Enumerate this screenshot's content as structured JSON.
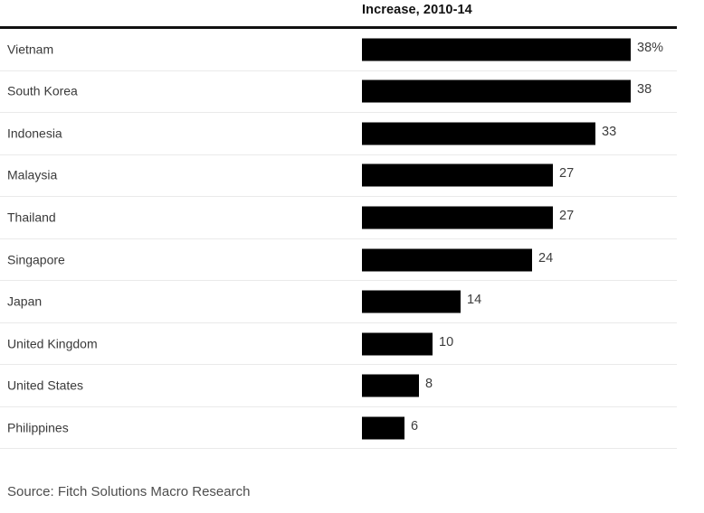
{
  "chart_data": {
    "type": "bar",
    "orientation": "horizontal",
    "title": "Increase, 2010-14",
    "categories": [
      "Vietnam",
      "South Korea",
      "Indonesia",
      "Malaysia",
      "Thailand",
      "Singapore",
      "Japan",
      "United Kingdom",
      "United States",
      "Philippines"
    ],
    "values": [
      38,
      38,
      33,
      27,
      27,
      24,
      14,
      10,
      8,
      6
    ],
    "value_labels": [
      "38%",
      "38",
      "33",
      "27",
      "27",
      "24",
      "14",
      "10",
      "8",
      "6"
    ],
    "unit": "%",
    "xlim": [
      0,
      38
    ],
    "grid": false,
    "legend": false,
    "bar_color": "#000000"
  },
  "source": "Source: Fitch Solutions Macro Research",
  "colors": {
    "bar": "#000000",
    "category_text": "#3a3a3a",
    "value_text": "#3d3d3d",
    "title_text": "#111111",
    "header_rule": "#111111",
    "row_separator": "#eaeaea",
    "source_text": "#4d4d4d",
    "background": "#ffffff"
  }
}
